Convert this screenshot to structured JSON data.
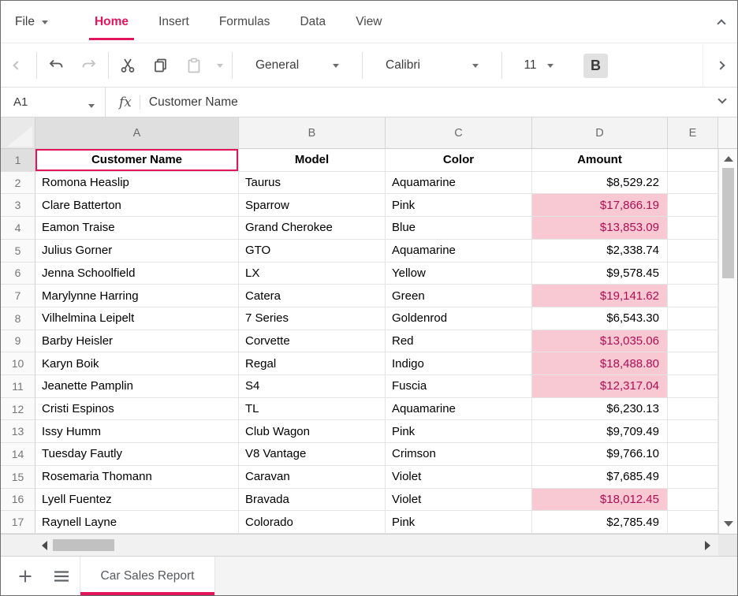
{
  "menu": {
    "file_label": "File",
    "tabs": [
      "Home",
      "Insert",
      "Formulas",
      "Data",
      "View"
    ],
    "active_tab": "Home"
  },
  "toolbar": {
    "number_format_value": "General",
    "font_name_value": "Calibri",
    "font_size_value": "11",
    "bold_label": "B"
  },
  "formula_bar": {
    "name_box_value": "A1",
    "fx_label": "fx",
    "formula_value": "Customer Name"
  },
  "grid": {
    "selected_cell": "A1",
    "selected_col": 0,
    "columns": [
      "A",
      "B",
      "C",
      "D",
      "E"
    ],
    "rows": [
      {
        "n": 1,
        "cells": [
          "Customer Name",
          "Model",
          "Color",
          "Amount",
          ""
        ],
        "hl": false
      },
      {
        "n": 2,
        "cells": [
          "Romona Heaslip",
          "Taurus",
          "Aquamarine",
          "$8,529.22",
          ""
        ],
        "hl": false
      },
      {
        "n": 3,
        "cells": [
          "Clare Batterton",
          "Sparrow",
          "Pink",
          "$17,866.19",
          ""
        ],
        "hl": true
      },
      {
        "n": 4,
        "cells": [
          "Eamon Traise",
          "Grand Cherokee",
          "Blue",
          "$13,853.09",
          ""
        ],
        "hl": true
      },
      {
        "n": 5,
        "cells": [
          "Julius Gorner",
          "GTO",
          "Aquamarine",
          "$2,338.74",
          ""
        ],
        "hl": false
      },
      {
        "n": 6,
        "cells": [
          "Jenna Schoolfield",
          "LX",
          "Yellow",
          "$9,578.45",
          ""
        ],
        "hl": false
      },
      {
        "n": 7,
        "cells": [
          "Marylynne Harring",
          "Catera",
          "Green",
          "$19,141.62",
          ""
        ],
        "hl": true
      },
      {
        "n": 8,
        "cells": [
          "Vilhelmina Leipelt",
          "7 Series",
          "Goldenrod",
          "$6,543.30",
          ""
        ],
        "hl": false
      },
      {
        "n": 9,
        "cells": [
          "Barby Heisler",
          "Corvette",
          "Red",
          "$13,035.06",
          ""
        ],
        "hl": true
      },
      {
        "n": 10,
        "cells": [
          "Karyn Boik",
          "Regal",
          "Indigo",
          "$18,488.80",
          ""
        ],
        "hl": true
      },
      {
        "n": 11,
        "cells": [
          "Jeanette Pamplin",
          "S4",
          "Fuscia",
          "$12,317.04",
          ""
        ],
        "hl": true
      },
      {
        "n": 12,
        "cells": [
          "Cristi Espinos",
          "TL",
          "Aquamarine",
          "$6,230.13",
          ""
        ],
        "hl": false
      },
      {
        "n": 13,
        "cells": [
          "Issy Humm",
          "Club Wagon",
          "Pink",
          "$9,709.49",
          ""
        ],
        "hl": false
      },
      {
        "n": 14,
        "cells": [
          "Tuesday Fautly",
          "V8 Vantage",
          "Crimson",
          "$9,766.10",
          ""
        ],
        "hl": false
      },
      {
        "n": 15,
        "cells": [
          "Rosemaria Thomann",
          "Caravan",
          "Violet",
          "$7,685.49",
          ""
        ],
        "hl": false
      },
      {
        "n": 16,
        "cells": [
          "Lyell Fuentez",
          "Bravada",
          "Violet",
          "$18,012.45",
          ""
        ],
        "hl": true
      },
      {
        "n": 17,
        "cells": [
          "Raynell Layne",
          "Colorado",
          "Pink",
          "$2,785.49",
          ""
        ],
        "hl": false
      }
    ]
  },
  "sheet_bar": {
    "active_tab_label": "Car Sales Report"
  },
  "colors": {
    "accent": "#e3165b",
    "highlight_bg": "#f8c8d3",
    "highlight_text": "#ad0e55",
    "selection_border": "#e3165b"
  }
}
